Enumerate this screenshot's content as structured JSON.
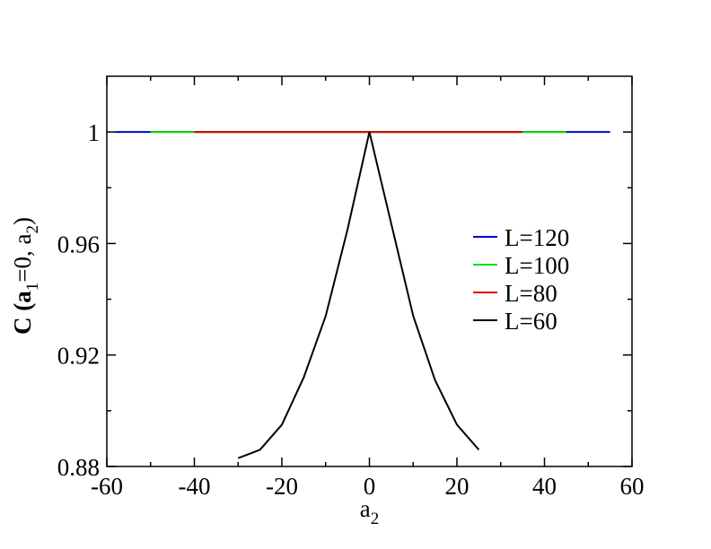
{
  "chart_data": {
    "type": "line",
    "xlabel": {
      "base": "a",
      "sub": "2"
    },
    "ylabel": {
      "parts": [
        {
          "text": "C (a",
          "sub": false
        },
        {
          "text": "1",
          "sub": true
        },
        {
          "text": "=0, a",
          "sub": false
        },
        {
          "text": "2",
          "sub": true
        },
        {
          "text": ")",
          "sub": false
        }
      ]
    },
    "xlim": [
      -60,
      60
    ],
    "ylim": [
      0.88,
      1.02
    ],
    "xticks": [
      -60,
      -40,
      -20,
      0,
      20,
      40,
      60
    ],
    "xtick_labels": [
      "-60",
      "-40",
      "-20",
      "0",
      "20",
      "40",
      "60"
    ],
    "yticks": [
      0.88,
      0.92,
      0.96,
      1
    ],
    "ytick_labels": [
      "0.88",
      "0.92",
      "0.96",
      "1"
    ],
    "x_minor_step": 10,
    "y_minor_step": 0.02,
    "grid": false,
    "legend_position": "right",
    "series": [
      {
        "name": "L=120",
        "color": "#0000cc",
        "x": [
          -58,
          55
        ],
        "y": [
          1,
          1
        ]
      },
      {
        "name": "L=100",
        "color": "#00e000",
        "x": [
          -50,
          45
        ],
        "y": [
          1,
          1
        ]
      },
      {
        "name": "L=80",
        "color": "#e00000",
        "x": [
          -40,
          35
        ],
        "y": [
          1,
          1
        ]
      },
      {
        "name": "L=60",
        "color": "#000000",
        "x": [
          -30,
          -25,
          -20,
          -15,
          -10,
          -5,
          0,
          5,
          10,
          15,
          20,
          25
        ],
        "y": [
          0.883,
          0.886,
          0.895,
          0.912,
          0.934,
          0.965,
          1.0,
          0.967,
          0.934,
          0.911,
          0.895,
          0.886
        ]
      }
    ]
  }
}
